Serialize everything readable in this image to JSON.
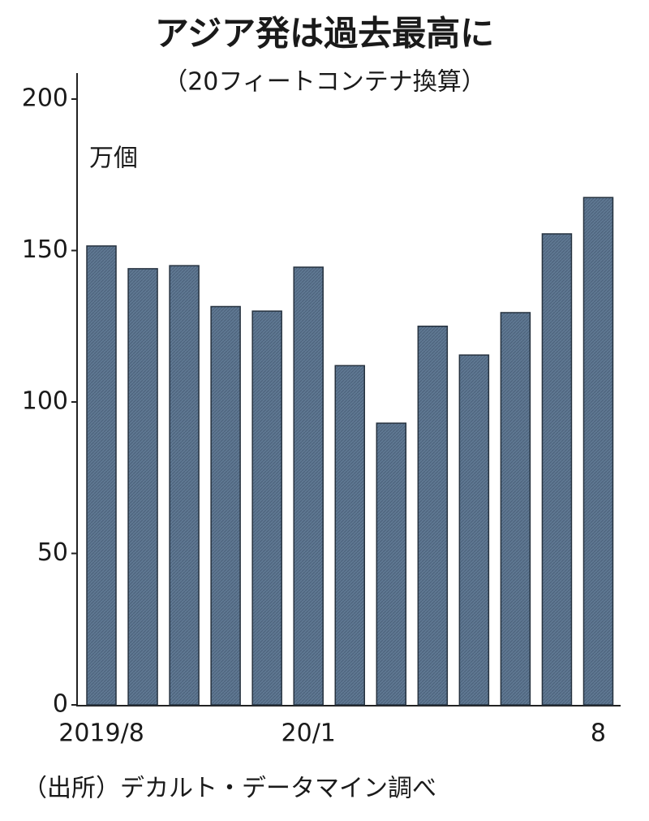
{
  "chart_data": {
    "type": "bar",
    "title": "アジア発は過去最高に",
    "subtitle": "（20フィートコンテナ換算）",
    "unit": "万個",
    "source": "（出所）デカルト・データマイン調べ",
    "categories": [
      "2019/8",
      null,
      null,
      null,
      null,
      "20/1",
      null,
      null,
      null,
      null,
      null,
      null,
      "8"
    ],
    "values": [
      151.5,
      144,
      145,
      131.5,
      130,
      144.5,
      112,
      93,
      125,
      115.5,
      129.5,
      155.5,
      167.5
    ],
    "color": "#5f7892",
    "ylim": [
      0,
      200
    ],
    "yticks": [
      0,
      50,
      100,
      150,
      200
    ],
    "grid": false
  }
}
